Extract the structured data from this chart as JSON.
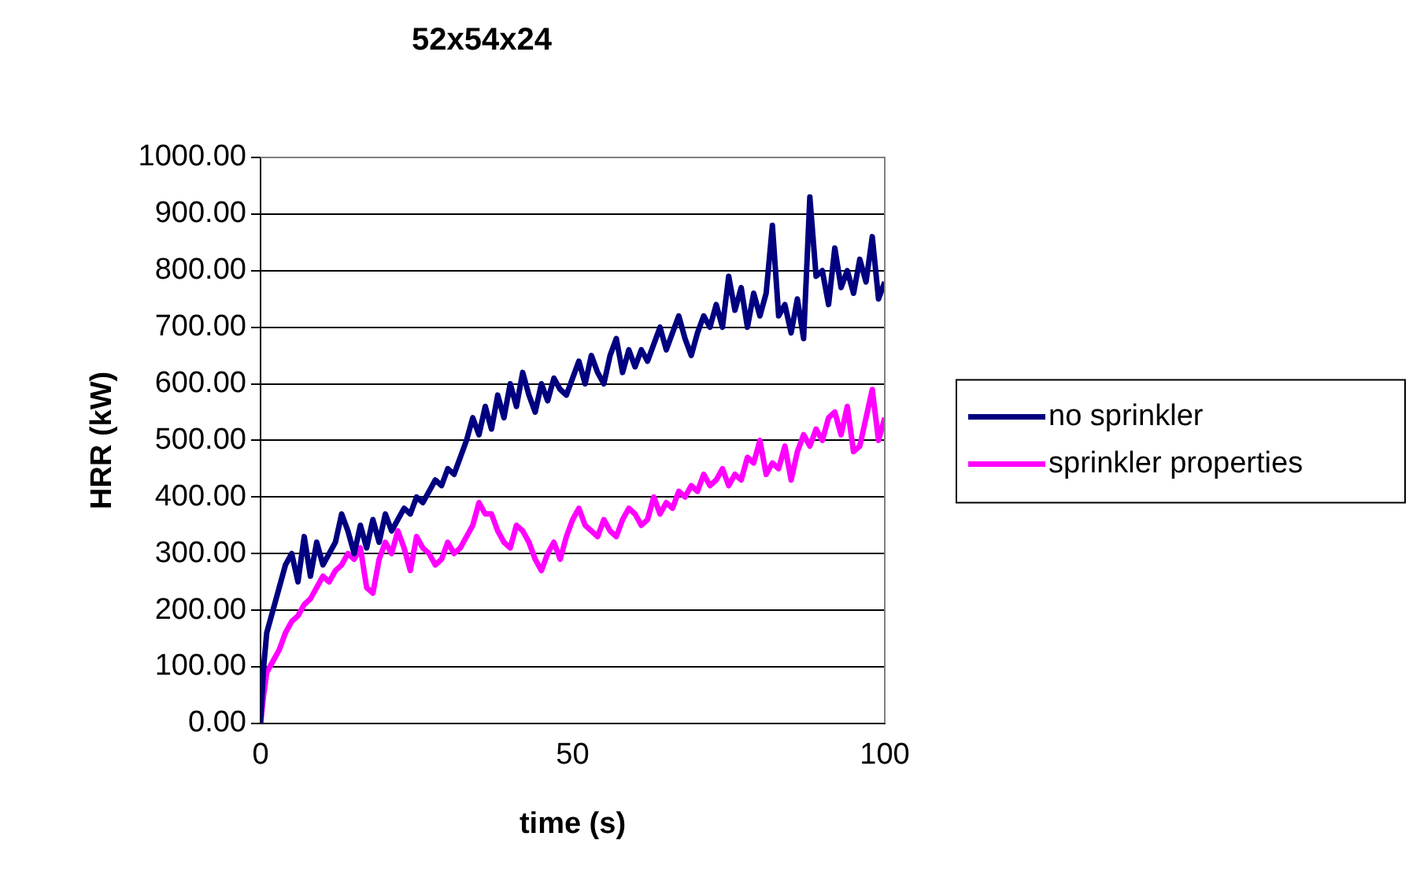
{
  "chart_data": {
    "type": "line",
    "title": "52x54x24",
    "xlabel": "time (s)",
    "ylabel": "HRR (kW)",
    "x": [
      0,
      0.5,
      1,
      2,
      3,
      4,
      5,
      6,
      7,
      8,
      9,
      10,
      11,
      12,
      13,
      14,
      15,
      16,
      17,
      18,
      19,
      20,
      21,
      22,
      23,
      24,
      25,
      26,
      27,
      28,
      29,
      30,
      31,
      32,
      33,
      34,
      35,
      36,
      37,
      38,
      39,
      40,
      41,
      42,
      43,
      44,
      45,
      46,
      47,
      48,
      49,
      50,
      51,
      52,
      53,
      54,
      55,
      56,
      57,
      58,
      59,
      60,
      61,
      62,
      63,
      64,
      65,
      66,
      67,
      68,
      69,
      70,
      71,
      72,
      73,
      74,
      75,
      76,
      77,
      78,
      79,
      80,
      81,
      82,
      83,
      84,
      85,
      86,
      87,
      88,
      89,
      90,
      91,
      92,
      93,
      94,
      95,
      96,
      97,
      98,
      99,
      100
    ],
    "series": [
      {
        "name": "no sprinkler",
        "color": "#000080",
        "values": [
          0,
          100,
          160,
          200,
          240,
          280,
          300,
          250,
          330,
          260,
          320,
          280,
          300,
          320,
          370,
          340,
          300,
          350,
          310,
          360,
          320,
          370,
          340,
          360,
          380,
          370,
          400,
          390,
          410,
          430,
          420,
          450,
          440,
          470,
          500,
          540,
          510,
          560,
          520,
          580,
          540,
          600,
          560,
          620,
          580,
          550,
          600,
          570,
          610,
          590,
          580,
          610,
          640,
          600,
          650,
          620,
          600,
          650,
          680,
          620,
          660,
          630,
          660,
          640,
          670,
          700,
          660,
          690,
          720,
          680,
          650,
          690,
          720,
          700,
          740,
          700,
          790,
          730,
          770,
          700,
          760,
          720,
          760,
          880,
          720,
          740,
          690,
          750,
          680,
          930,
          790,
          800,
          740,
          840,
          770,
          800,
          760,
          820,
          780,
          860,
          750,
          780
        ]
      },
      {
        "name": "sprinkler properties",
        "color": "#ff00ff",
        "values": [
          0,
          50,
          90,
          110,
          130,
          160,
          180,
          190,
          210,
          220,
          240,
          260,
          250,
          270,
          280,
          300,
          290,
          310,
          240,
          230,
          290,
          320,
          300,
          340,
          310,
          270,
          330,
          310,
          300,
          280,
          290,
          320,
          300,
          310,
          330,
          350,
          390,
          370,
          370,
          340,
          320,
          310,
          350,
          340,
          320,
          290,
          270,
          300,
          320,
          290,
          330,
          360,
          380,
          350,
          340,
          330,
          360,
          340,
          330,
          360,
          380,
          370,
          350,
          360,
          400,
          370,
          390,
          380,
          410,
          400,
          420,
          410,
          440,
          420,
          430,
          450,
          420,
          440,
          430,
          470,
          460,
          500,
          440,
          460,
          450,
          490,
          430,
          480,
          510,
          490,
          520,
          500,
          540,
          550,
          510,
          560,
          480,
          490,
          540,
          590,
          500,
          540
        ]
      }
    ],
    "xlim": [
      0,
      100
    ],
    "xticks": [
      0,
      50,
      100
    ],
    "ylim": [
      0,
      1000
    ],
    "yticks": [
      {
        "value": 0,
        "label": "0.00"
      },
      {
        "value": 100,
        "label": "100.00"
      },
      {
        "value": 200,
        "label": "200.00"
      },
      {
        "value": 300,
        "label": "300.00"
      },
      {
        "value": 400,
        "label": "400.00"
      },
      {
        "value": 500,
        "label": "500.00"
      },
      {
        "value": 600,
        "label": "600.00"
      },
      {
        "value": 700,
        "label": "700.00"
      },
      {
        "value": 800,
        "label": "800.00"
      },
      {
        "value": 900,
        "label": "900.00"
      },
      {
        "value": 1000,
        "label": "1000.00"
      }
    ],
    "grid": "y",
    "legend": "right",
    "marker": "none",
    "line_style": "solid"
  }
}
